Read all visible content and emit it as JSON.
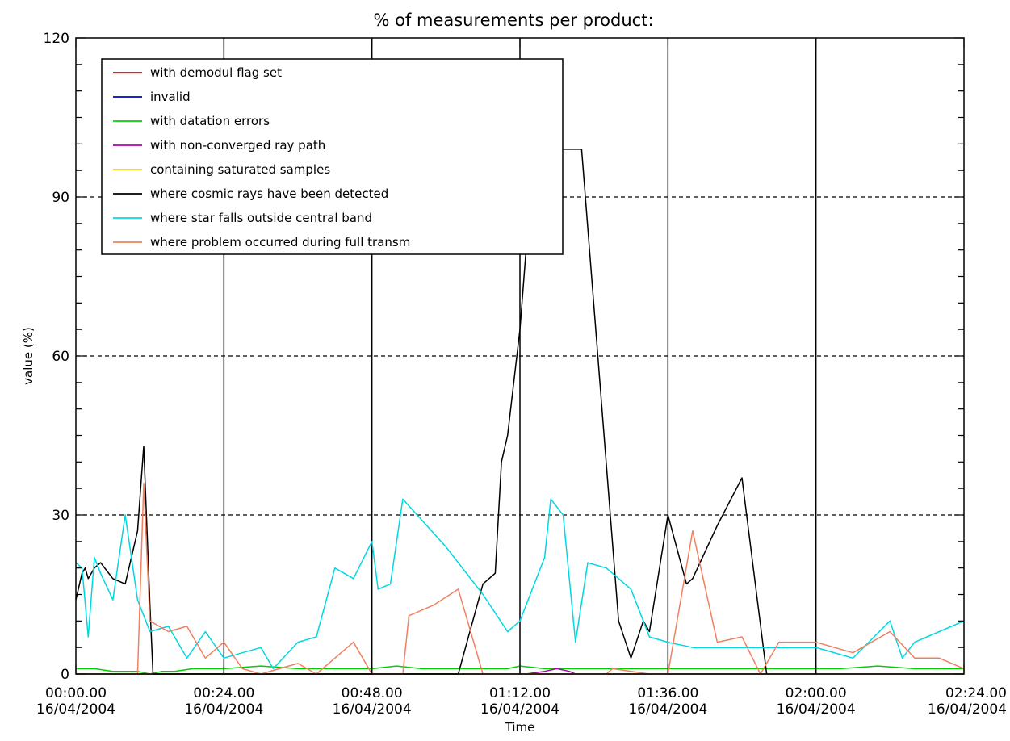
{
  "chart_data": {
    "type": "line",
    "title": "% of measurements per product:",
    "xlabel": "Time",
    "ylabel": "value (%)",
    "ylim": [
      0,
      120
    ],
    "xlim": [
      0,
      144
    ],
    "x_unit": "minutes after 00:00:00 16/04/2004",
    "y_ticks": [
      0,
      30,
      60,
      90,
      120
    ],
    "x_ticks": [
      {
        "value": 0,
        "time": "00:00.00",
        "date": "16/04/2004"
      },
      {
        "value": 24,
        "time": "00:24.00",
        "date": "16/04/2004"
      },
      {
        "value": 48,
        "time": "00:48.00",
        "date": "16/04/2004"
      },
      {
        "value": 72,
        "time": "01:12.00",
        "date": "16/04/2004"
      },
      {
        "value": 96,
        "time": "01:36.00",
        "date": "16/04/2004"
      },
      {
        "value": 120,
        "time": "02:00.00",
        "date": "16/04/2004"
      },
      {
        "value": 144,
        "time": "02:24.00",
        "date": "16/04/2004"
      }
    ],
    "grid": {
      "horizontal_dashed_at": [
        30,
        60,
        90
      ],
      "vertical_solid_at": [
        24,
        48,
        72,
        96,
        120
      ]
    },
    "legend_position": "top-left",
    "series": [
      {
        "name": "with demodul flag set",
        "color": "#e00000",
        "points": [
          [
            0,
            0
          ],
          [
            10,
            0
          ],
          [
            20,
            0
          ],
          [
            30,
            0
          ],
          [
            40,
            0
          ],
          [
            50,
            0
          ],
          [
            60,
            0
          ],
          [
            70,
            0
          ],
          [
            80,
            0
          ],
          [
            90,
            0
          ],
          [
            100,
            0
          ],
          [
            110,
            0
          ],
          [
            120,
            0
          ],
          [
            130,
            0
          ],
          [
            144,
            0
          ]
        ]
      },
      {
        "name": "invalid",
        "color": "#0000c0",
        "points": [
          [
            0,
            0
          ],
          [
            20,
            0
          ],
          [
            40,
            0
          ],
          [
            60,
            0
          ],
          [
            80,
            0
          ],
          [
            100,
            0
          ],
          [
            120,
            0
          ],
          [
            144,
            0
          ]
        ]
      },
      {
        "name": "with datation errors",
        "color": "#00d000",
        "points": [
          [
            0,
            1
          ],
          [
            3,
            1
          ],
          [
            6,
            0.5
          ],
          [
            10,
            0.5
          ],
          [
            12,
            0
          ],
          [
            14,
            0.5
          ],
          [
            16,
            0.5
          ],
          [
            19,
            1
          ],
          [
            24,
            1
          ],
          [
            30,
            1.5
          ],
          [
            36,
            1
          ],
          [
            42,
            1
          ],
          [
            48,
            1
          ],
          [
            52,
            1.5
          ],
          [
            56,
            1
          ],
          [
            60,
            1
          ],
          [
            66,
            1
          ],
          [
            70,
            1
          ],
          [
            72,
            1.5
          ],
          [
            76,
            1
          ],
          [
            82,
            1
          ],
          [
            88,
            1
          ],
          [
            94,
            1
          ],
          [
            100,
            1
          ],
          [
            106,
            1
          ],
          [
            110,
            1
          ],
          [
            114,
            1
          ],
          [
            120,
            1
          ],
          [
            124,
            1
          ],
          [
            130,
            1.5
          ],
          [
            136,
            1
          ],
          [
            140,
            1
          ],
          [
            144,
            1
          ]
        ]
      },
      {
        "name": "with non-converged ray path",
        "color": "#b000b0",
        "points": [
          [
            73,
            0
          ],
          [
            76,
            0.5
          ],
          [
            78,
            1
          ],
          [
            80,
            0.5
          ],
          [
            81,
            0
          ]
        ]
      },
      {
        "name": "containing saturated samples",
        "color": "#e0e000",
        "points": [
          [
            0,
            0
          ],
          [
            30,
            0
          ],
          [
            60,
            0
          ],
          [
            90,
            0
          ],
          [
            120,
            0
          ],
          [
            144,
            0
          ]
        ]
      },
      {
        "name": "where cosmic rays have been detected",
        "color": "#000000",
        "points": [
          [
            0,
            14
          ],
          [
            1,
            19
          ],
          [
            1.5,
            20
          ],
          [
            2,
            18
          ],
          [
            3,
            20
          ],
          [
            4,
            21
          ],
          [
            6,
            18
          ],
          [
            8,
            17
          ],
          [
            10,
            27
          ],
          [
            11,
            43
          ],
          [
            12,
            13
          ],
          [
            12.5,
            0
          ],
          [
            62,
            0
          ],
          [
            66,
            17
          ],
          [
            67,
            18
          ],
          [
            68,
            19
          ],
          [
            69,
            40
          ],
          [
            70,
            45
          ],
          [
            72,
            65
          ],
          [
            73,
            80
          ],
          [
            74,
            98
          ],
          [
            75,
            99
          ],
          [
            81,
            99
          ],
          [
            82,
            99
          ],
          [
            88,
            10
          ],
          [
            90,
            3
          ],
          [
            92,
            10
          ],
          [
            93,
            8
          ],
          [
            96,
            30
          ],
          [
            99,
            17
          ],
          [
            100,
            18
          ],
          [
            104,
            28
          ],
          [
            108,
            37
          ],
          [
            112,
            0
          ]
        ]
      },
      {
        "name": "where star falls outside central band",
        "color": "#00d8e0",
        "points": [
          [
            0,
            21
          ],
          [
            1,
            20
          ],
          [
            2,
            7
          ],
          [
            3,
            22
          ],
          [
            4,
            19
          ],
          [
            6,
            14
          ],
          [
            8,
            30
          ],
          [
            10,
            14
          ],
          [
            12,
            8
          ],
          [
            15,
            9
          ],
          [
            18,
            3
          ],
          [
            21,
            8
          ],
          [
            24,
            3
          ],
          [
            27,
            4
          ],
          [
            30,
            5
          ],
          [
            32,
            1
          ],
          [
            36,
            6
          ],
          [
            39,
            7
          ],
          [
            42,
            20
          ],
          [
            45,
            18
          ],
          [
            48,
            25
          ],
          [
            49,
            16
          ],
          [
            51,
            17
          ],
          [
            53,
            33
          ],
          [
            60,
            24
          ],
          [
            66,
            15
          ],
          [
            70,
            8
          ],
          [
            72,
            10
          ],
          [
            76,
            22
          ],
          [
            77,
            33
          ],
          [
            79,
            30
          ],
          [
            81,
            6
          ],
          [
            83,
            21
          ],
          [
            86,
            20
          ],
          [
            90,
            16
          ],
          [
            93,
            7
          ],
          [
            96,
            6
          ],
          [
            100,
            5
          ],
          [
            108,
            5
          ],
          [
            112,
            5
          ],
          [
            120,
            5
          ],
          [
            126,
            3
          ],
          [
            132,
            10
          ],
          [
            134,
            3
          ],
          [
            136,
            6
          ],
          [
            144,
            10
          ]
        ]
      },
      {
        "name": "where problem occurred during full transm",
        "color": "#f08060",
        "points": [
          [
            10,
            0
          ],
          [
            11,
            36
          ],
          [
            12,
            10
          ],
          [
            15,
            8
          ],
          [
            18,
            9
          ],
          [
            21,
            3
          ],
          [
            24,
            6
          ],
          [
            27,
            1
          ],
          [
            30,
            0
          ],
          [
            33,
            1
          ],
          [
            36,
            2
          ],
          [
            39,
            0
          ],
          [
            42,
            3
          ],
          [
            45,
            6
          ],
          [
            48,
            0
          ],
          [
            53,
            0
          ],
          [
            54,
            11
          ],
          [
            58,
            13
          ],
          [
            62,
            16
          ],
          [
            66,
            0
          ],
          [
            86,
            0
          ],
          [
            87,
            1
          ],
          [
            93,
            0
          ],
          [
            96,
            0
          ],
          [
            100,
            27
          ],
          [
            104,
            6
          ],
          [
            108,
            7
          ],
          [
            111,
            0
          ],
          [
            114,
            6
          ],
          [
            120,
            6
          ],
          [
            126,
            4
          ],
          [
            132,
            8
          ],
          [
            136,
            3
          ],
          [
            140,
            3
          ],
          [
            144,
            1
          ]
        ]
      }
    ]
  }
}
